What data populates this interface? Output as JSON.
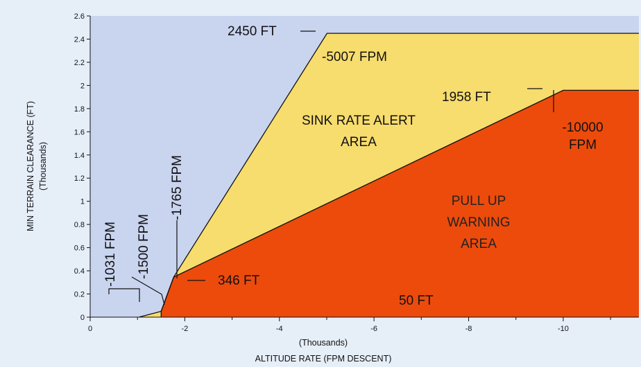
{
  "chart_data": {
    "type": "area",
    "xlabel": "ALTITUDE RATE (FPM DESCENT)",
    "xlabel_units": "(Thousands)",
    "ylabel": "MIN TERRAIN CLEARANCE (FT)",
    "ylabel_units": "(Thousands)",
    "xlim": [
      0,
      -11.6
    ],
    "ylim": [
      0,
      2.6
    ],
    "x_ticks": [
      0,
      -2,
      -4,
      -6,
      -8,
      -10
    ],
    "x_tick_labels": [
      "0",
      "-2",
      "-4",
      "-6",
      "-8",
      "-10"
    ],
    "y_ticks": [
      0,
      0.2,
      0.4,
      0.6,
      0.8,
      1,
      1.2,
      1.4,
      1.6,
      1.8,
      2,
      2.2,
      2.4,
      2.6
    ],
    "y_tick_labels": [
      "0",
      "0.2",
      "0.4",
      "0.6",
      "0.8",
      "1",
      "1.2",
      "1.4",
      "1.6",
      "1.8",
      "2",
      "2.2",
      "2.4",
      "2.6"
    ],
    "grid": false,
    "colors": {
      "background": "#e6eef8",
      "plot_background": "#c9d4ef",
      "sink_rate": "#f7dc6e",
      "pull_up": "#ec4b0c",
      "line": "#111111"
    },
    "series": [
      {
        "name": "SINK RATE ALERT AREA",
        "points": [
          [
            -1.031,
            0
          ],
          [
            -1.5,
            0.05
          ],
          [
            -1.765,
            0.346
          ],
          [
            -5.007,
            2.45
          ],
          [
            -11.6,
            2.45
          ]
        ]
      },
      {
        "name": "PULL UP WARNING AREA",
        "points": [
          [
            -1.5,
            0
          ],
          [
            -1.5,
            0.05
          ],
          [
            -1.765,
            0.346
          ],
          [
            -10.0,
            1.958
          ],
          [
            -11.6,
            1.958
          ]
        ]
      }
    ],
    "area_labels": {
      "sink_rate": [
        "SINK RATE ALERT",
        "AREA"
      ],
      "pull_up": [
        "PULL UP",
        "WARNING",
        "AREA"
      ]
    },
    "annotations": {
      "ft_2450": "2450 FT",
      "fpm_5007": "-5007 FPM",
      "ft_1958": "1958 FT",
      "fpm_10000_a": "-10000",
      "fpm_10000_b": "FPM",
      "fpm_1765": "-1765 FPM",
      "fpm_1500": "-1500 FPM",
      "fpm_1031": "-1031 FPM",
      "ft_346": "346 FT",
      "ft_50": "50 FT"
    }
  }
}
